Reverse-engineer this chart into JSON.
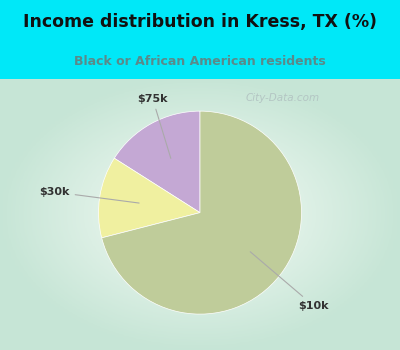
{
  "title": "Income distribution in Kress, TX (%)",
  "subtitle": "Black or African American residents",
  "slices": [
    {
      "label": "$75k",
      "value": 16,
      "color": "#c4a8d4"
    },
    {
      "label": "$30k",
      "value": 13,
      "color": "#f0f0a0"
    },
    {
      "label": "$10k",
      "value": 71,
      "color": "#bfcc9a"
    }
  ],
  "background_cyan": "#00e8f8",
  "background_chart": "#d8eee0",
  "title_color": "#111111",
  "subtitle_color": "#5a8a8a",
  "watermark_color": "#b0c0c0",
  "start_angle": 90,
  "label_color": "#333333",
  "line_color": "#aaaaaa"
}
